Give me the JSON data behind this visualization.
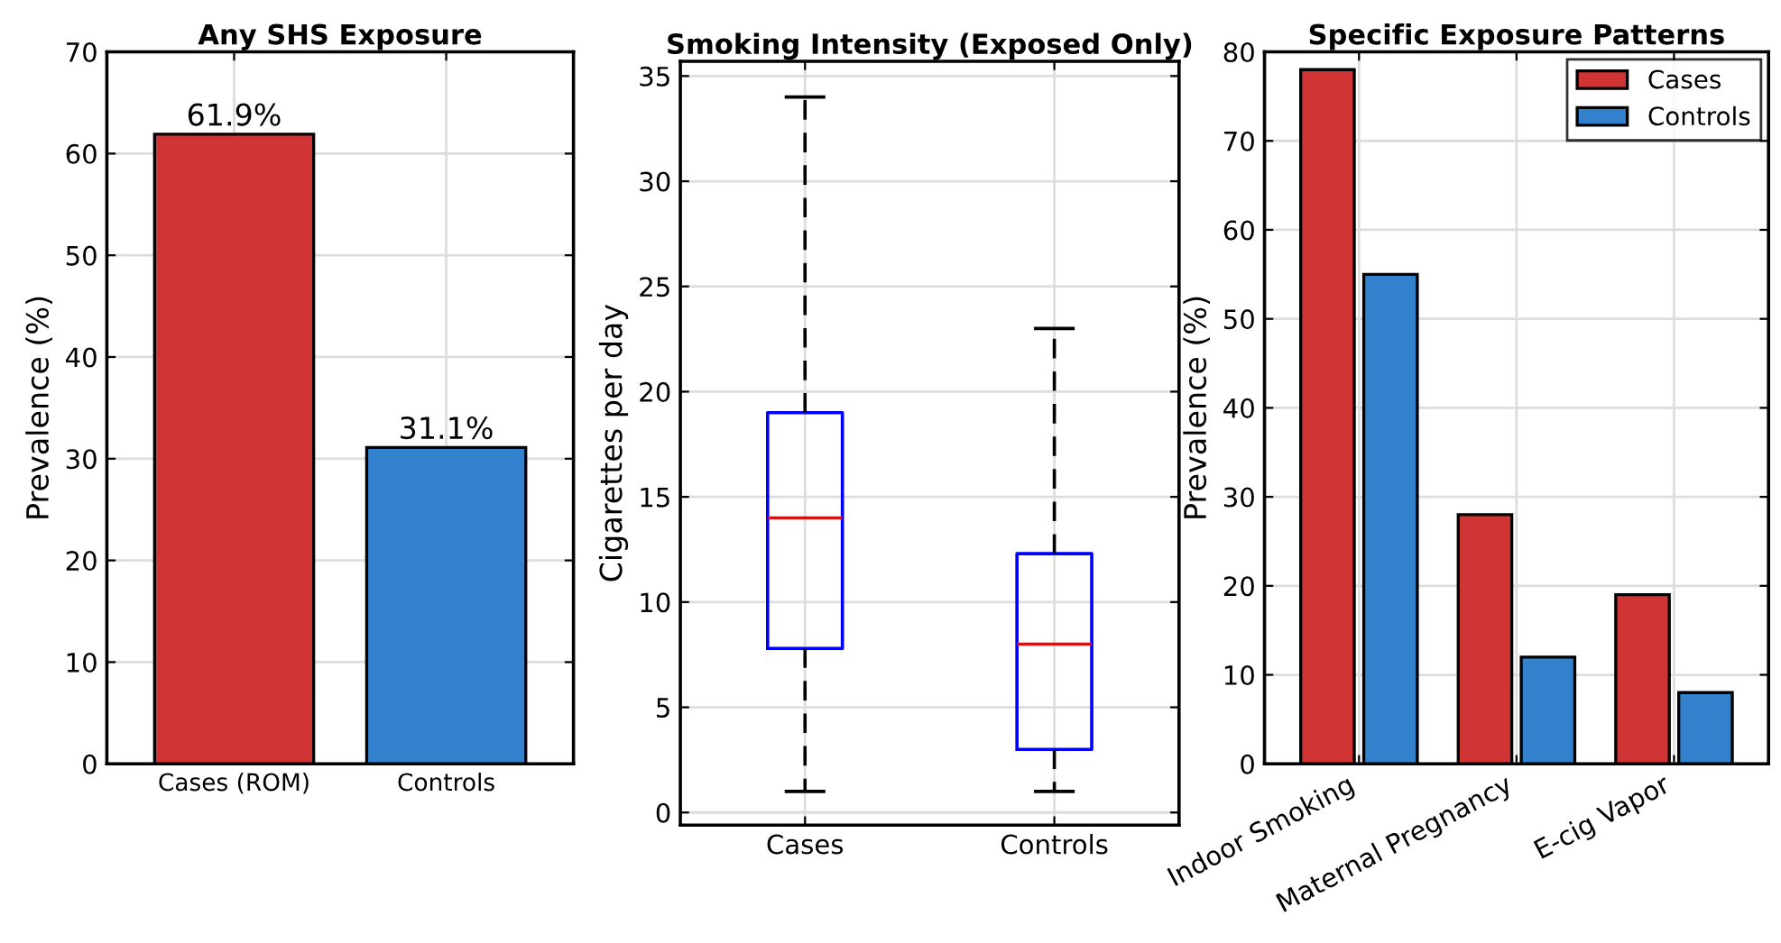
{
  "chart_data": [
    {
      "type": "bar",
      "title": "Any SHS Exposure",
      "ylabel": "Prevalence (%)",
      "categories": [
        "Cases (ROM)",
        "Controls"
      ],
      "values": [
        61.9,
        31.1
      ],
      "colors": [
        "#d03434",
        "#3380cc"
      ],
      "value_labels": [
        "61.9%",
        "31.1%"
      ],
      "ylim": [
        0,
        70
      ],
      "yticks": [
        0,
        10,
        20,
        30,
        40,
        50,
        60,
        70
      ],
      "grid": true
    },
    {
      "type": "box",
      "title": "Smoking Intensity (Exposed Only)",
      "ylabel": "Cigarettes per day",
      "categories": [
        "Cases",
        "Controls"
      ],
      "series": [
        {
          "color": "#0000ff",
          "boxes": [
            {
              "low": 1,
              "q1": 7.8,
              "median": 14,
              "q3": 19,
              "high": 34
            },
            {
              "low": 1,
              "q1": 3,
              "median": 8,
              "q3": 12.3,
              "high": 23
            }
          ]
        }
      ],
      "ylim": [
        -0.6,
        35.7
      ],
      "yticks": [
        0,
        5,
        10,
        15,
        20,
        25,
        30,
        35
      ],
      "grid": true
    },
    {
      "type": "bar",
      "title": "Specific Exposure Patterns",
      "ylabel": "Prevalence (%)",
      "categories": [
        "Indoor Smoking",
        "Maternal Pregnancy",
        "E-cig Vapor"
      ],
      "series": [
        {
          "name": "Cases",
          "color": "#d03434",
          "values": [
            78,
            28,
            19
          ]
        },
        {
          "name": "Controls",
          "color": "#3380cc",
          "values": [
            55,
            12,
            8
          ]
        }
      ],
      "ylim": [
        0,
        80
      ],
      "yticks": [
        0,
        10,
        20,
        30,
        40,
        50,
        60,
        70,
        80
      ],
      "grid": true,
      "legend": "top right"
    }
  ]
}
